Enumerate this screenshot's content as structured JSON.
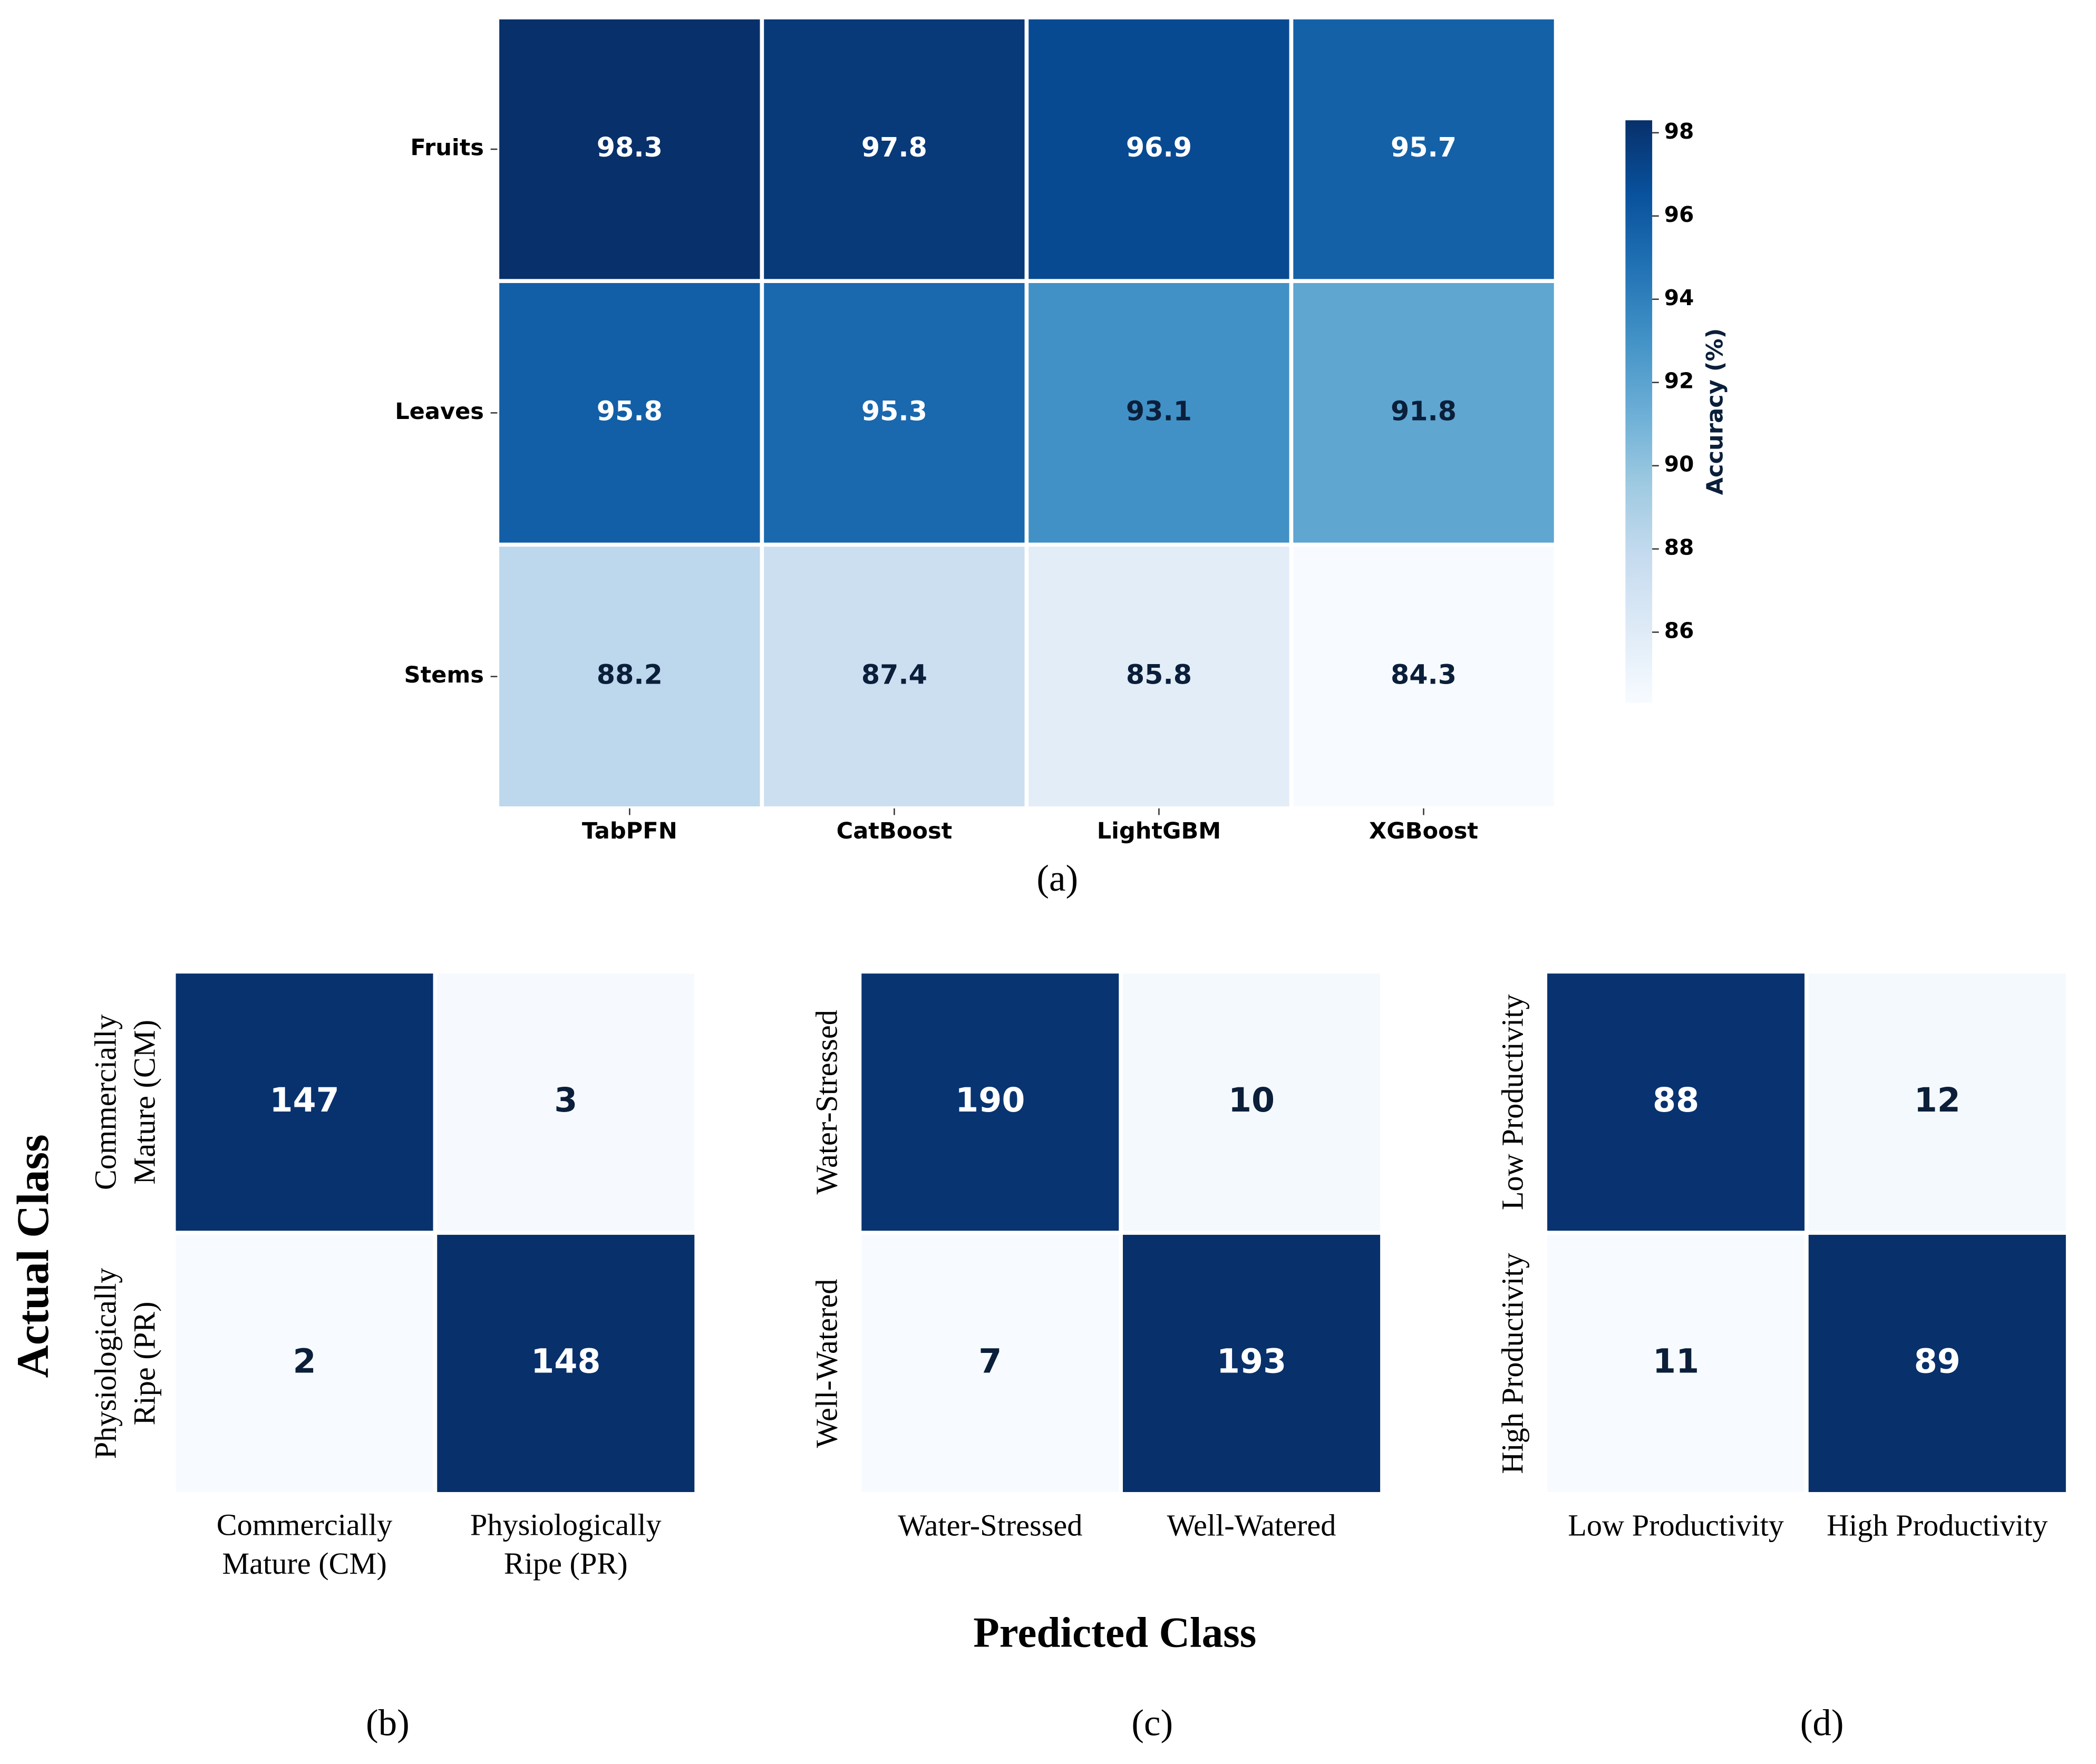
{
  "chart_data": [
    {
      "type": "heatmap",
      "caption": "(a)",
      "x_categories": [
        "TabPFN",
        "CatBoost",
        "LightGBM",
        "XGBoost"
      ],
      "y_categories": [
        "Fruits",
        "Leaves",
        "Stems"
      ],
      "values": [
        [
          98.3,
          97.8,
          96.9,
          95.7
        ],
        [
          95.8,
          95.3,
          93.1,
          91.8
        ],
        [
          88.2,
          87.4,
          85.8,
          84.3
        ]
      ],
      "clim": [
        84.3,
        98.3
      ],
      "colors": [
        "#f7fbff",
        "#deebf7",
        "#c6dbef",
        "#9ecae1",
        "#6baed6",
        "#4292c6",
        "#2171b5",
        "#08519c",
        "#08306b"
      ],
      "colorbar_label": "Accuracy (%)",
      "colorbar_ticks": [
        86,
        88,
        90,
        92,
        94,
        96,
        98
      ]
    },
    {
      "type": "heatmap",
      "caption": "(b)",
      "ylabel": "Actual Class",
      "x_categories": [
        "Commercially Mature (CM)",
        "Physiologically Ripe (PR)"
      ],
      "y_categories": [
        "Commercially Mature (CM)",
        "Physiologically Ripe (PR)"
      ],
      "values": [
        [
          147,
          3
        ],
        [
          2,
          148
        ]
      ],
      "clim": [
        2,
        148
      ],
      "colors": [
        "#f7fbff",
        "#deebf7",
        "#c6dbef",
        "#9ecae1",
        "#6baed6",
        "#4292c6",
        "#2171b5",
        "#08519c",
        "#08306b"
      ]
    },
    {
      "type": "heatmap",
      "caption": "(c)",
      "xlabel": "Predicted Class",
      "x_categories": [
        "Water-Stressed",
        "Well-Watered"
      ],
      "y_categories": [
        "Water-Stressed",
        "Well-Watered"
      ],
      "values": [
        [
          190,
          10
        ],
        [
          7,
          193
        ]
      ],
      "clim": [
        7,
        193
      ],
      "colors": [
        "#f7fbff",
        "#deebf7",
        "#c6dbef",
        "#9ecae1",
        "#6baed6",
        "#4292c6",
        "#2171b5",
        "#08519c",
        "#08306b"
      ]
    },
    {
      "type": "heatmap",
      "caption": "(d)",
      "x_categories": [
        "Low Productivity",
        "High Productivity"
      ],
      "y_categories": [
        "Low Productivity",
        "High Productivity"
      ],
      "values": [
        [
          88,
          12
        ],
        [
          11,
          89
        ]
      ],
      "clim": [
        11,
        89
      ],
      "colors": [
        "#f7fbff",
        "#deebf7",
        "#c6dbef",
        "#9ecae1",
        "#6baed6",
        "#4292c6",
        "#2171b5",
        "#08519c",
        "#08306b"
      ]
    }
  ]
}
